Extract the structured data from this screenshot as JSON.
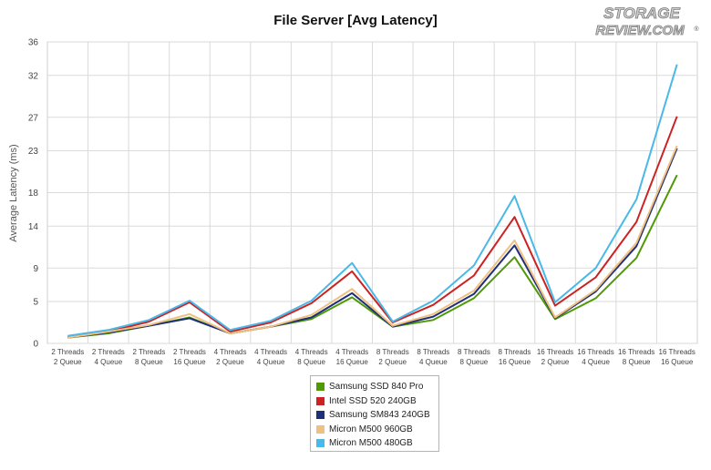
{
  "logo": {
    "line1": "STORAGE",
    "line2": "REVIEW.COM",
    "mark": "®"
  },
  "chart_data": {
    "type": "line",
    "title": "File Server [Avg Latency]",
    "xlabel": "",
    "ylabel": "Average Latency (ms)",
    "ylim": [
      0,
      36
    ],
    "yticks": [
      0,
      5,
      9,
      14,
      18,
      23,
      27,
      32,
      36
    ],
    "grid": true,
    "legend_position": "bottom",
    "categories": [
      [
        "2 Threads",
        "2 Queue"
      ],
      [
        "2 Threads",
        "4 Queue"
      ],
      [
        "2 Threads",
        "8 Queue"
      ],
      [
        "2 Threads",
        "16 Queue"
      ],
      [
        "4 Threads",
        "2 Queue"
      ],
      [
        "4 Threads",
        "4 Queue"
      ],
      [
        "4 Threads",
        "8 Queue"
      ],
      [
        "4 Threads",
        "16 Queue"
      ],
      [
        "8 Threads",
        "2 Queue"
      ],
      [
        "8 Threads",
        "4 Queue"
      ],
      [
        "8 Threads",
        "8 Queue"
      ],
      [
        "8 Threads",
        "16 Queue"
      ],
      [
        "16 Threads",
        "2 Queue"
      ],
      [
        "16 Threads",
        "4 Queue"
      ],
      [
        "16 Threads",
        "8 Queue"
      ],
      [
        "16 Threads",
        "16 Queue"
      ]
    ],
    "series": [
      {
        "name": "Samsung SSD 840 Pro",
        "color": "#4e9a06",
        "values": [
          0.7,
          1.2,
          2.1,
          3.1,
          1.2,
          2.0,
          2.9,
          5.5,
          2.0,
          2.8,
          5.4,
          10.3,
          2.9,
          5.4,
          10.2,
          20.1
        ]
      },
      {
        "name": "Intel SSD 520 240GB",
        "color": "#cc2222",
        "values": [
          0.8,
          1.4,
          2.6,
          4.9,
          1.4,
          2.5,
          4.8,
          8.6,
          2.5,
          4.6,
          8.1,
          15.1,
          4.5,
          7.9,
          14.5,
          27.1
        ]
      },
      {
        "name": "Samsung SM843 240GB",
        "color": "#1f2f7a",
        "values": [
          0.7,
          1.3,
          2.1,
          3.0,
          1.2,
          2.0,
          3.1,
          6.0,
          2.0,
          3.2,
          5.9,
          11.7,
          3.0,
          6.2,
          11.6,
          23.3
        ]
      },
      {
        "name": "Micron M500 960GB",
        "color": "#f0c080",
        "values": [
          0.7,
          1.4,
          2.2,
          3.5,
          1.2,
          2.0,
          3.4,
          6.5,
          2.1,
          3.5,
          6.3,
          12.3,
          3.1,
          6.4,
          12.0,
          23.6
        ]
      },
      {
        "name": "Micron M500 480GB",
        "color": "#4ab8e8",
        "values": [
          0.9,
          1.6,
          2.8,
          5.1,
          1.6,
          2.7,
          5.1,
          9.6,
          2.6,
          5.1,
          9.3,
          17.6,
          4.9,
          9.0,
          17.2,
          33.3
        ]
      }
    ]
  }
}
